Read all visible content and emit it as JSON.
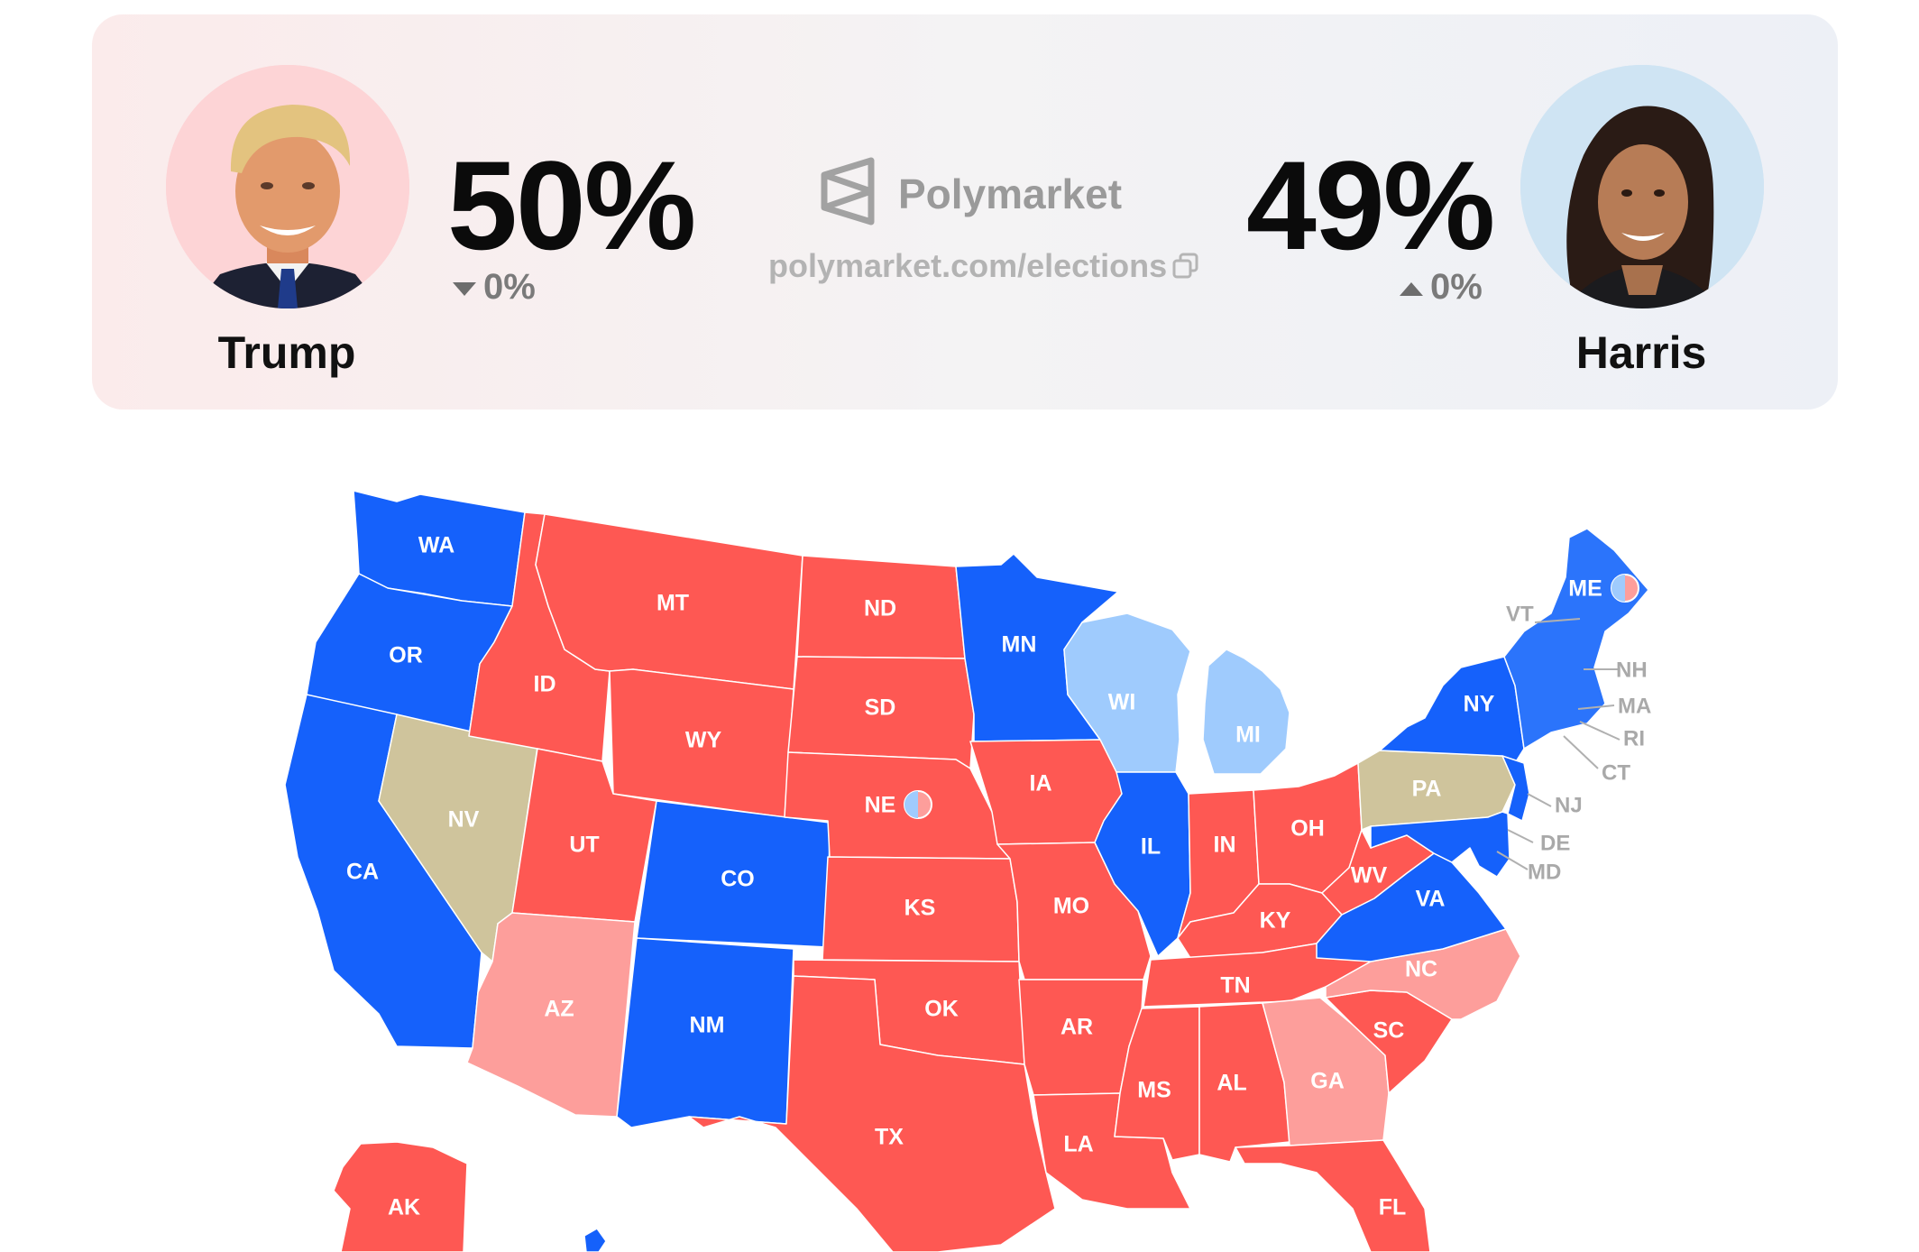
{
  "header": {
    "brand_name": "Polymarket",
    "brand_link": "polymarket.com/elections",
    "candidates": [
      {
        "name": "Trump",
        "percent": "50%",
        "change": "0%",
        "change_direction": "down",
        "avatar_bg": "#fdd4d6"
      },
      {
        "name": "Harris",
        "percent": "49%",
        "change": "0%",
        "change_direction": "up",
        "avatar_bg": "#cfe4f3"
      }
    ]
  },
  "legend_colors": {
    "solid_dem": "#1561fb",
    "likely_dem": "#9fcbfd",
    "solid_rep": "#fe5853",
    "likely_rep": "#fd9e9b",
    "tossup": "#cfc49c"
  },
  "map": {
    "states": [
      {
        "abbr": "WA",
        "lean": "solid_dem"
      },
      {
        "abbr": "OR",
        "lean": "solid_dem"
      },
      {
        "abbr": "CA",
        "lean": "solid_dem"
      },
      {
        "abbr": "NV",
        "lean": "tossup"
      },
      {
        "abbr": "ID",
        "lean": "solid_rep"
      },
      {
        "abbr": "MT",
        "lean": "solid_rep"
      },
      {
        "abbr": "WY",
        "lean": "solid_rep"
      },
      {
        "abbr": "UT",
        "lean": "solid_rep"
      },
      {
        "abbr": "AZ",
        "lean": "likely_rep"
      },
      {
        "abbr": "CO",
        "lean": "solid_dem"
      },
      {
        "abbr": "NM",
        "lean": "solid_dem"
      },
      {
        "abbr": "ND",
        "lean": "solid_rep"
      },
      {
        "abbr": "SD",
        "lean": "solid_rep"
      },
      {
        "abbr": "NE",
        "lean": "solid_rep"
      },
      {
        "abbr": "KS",
        "lean": "solid_rep"
      },
      {
        "abbr": "OK",
        "lean": "solid_rep"
      },
      {
        "abbr": "TX",
        "lean": "solid_rep"
      },
      {
        "abbr": "MN",
        "lean": "solid_dem"
      },
      {
        "abbr": "IA",
        "lean": "solid_rep"
      },
      {
        "abbr": "MO",
        "lean": "solid_rep"
      },
      {
        "abbr": "AR",
        "lean": "solid_rep"
      },
      {
        "abbr": "LA",
        "lean": "solid_rep"
      },
      {
        "abbr": "WI",
        "lean": "likely_dem"
      },
      {
        "abbr": "IL",
        "lean": "solid_dem"
      },
      {
        "abbr": "MI",
        "lean": "likely_dem"
      },
      {
        "abbr": "IN",
        "lean": "solid_rep"
      },
      {
        "abbr": "OH",
        "lean": "solid_rep"
      },
      {
        "abbr": "KY",
        "lean": "solid_rep"
      },
      {
        "abbr": "TN",
        "lean": "solid_rep"
      },
      {
        "abbr": "MS",
        "lean": "solid_rep"
      },
      {
        "abbr": "AL",
        "lean": "solid_rep"
      },
      {
        "abbr": "GA",
        "lean": "likely_rep"
      },
      {
        "abbr": "FL",
        "lean": "solid_rep"
      },
      {
        "abbr": "SC",
        "lean": "solid_rep"
      },
      {
        "abbr": "NC",
        "lean": "likely_rep"
      },
      {
        "abbr": "VA",
        "lean": "solid_dem"
      },
      {
        "abbr": "WV",
        "lean": "solid_rep"
      },
      {
        "abbr": "PA",
        "lean": "tossup"
      },
      {
        "abbr": "NY",
        "lean": "solid_dem"
      },
      {
        "abbr": "ME",
        "lean": "solid_dem"
      },
      {
        "abbr": "AK",
        "lean": "solid_rep"
      }
    ],
    "small_states": [
      "VT",
      "NH",
      "MA",
      "RI",
      "CT",
      "NJ",
      "DE",
      "MD"
    ]
  }
}
